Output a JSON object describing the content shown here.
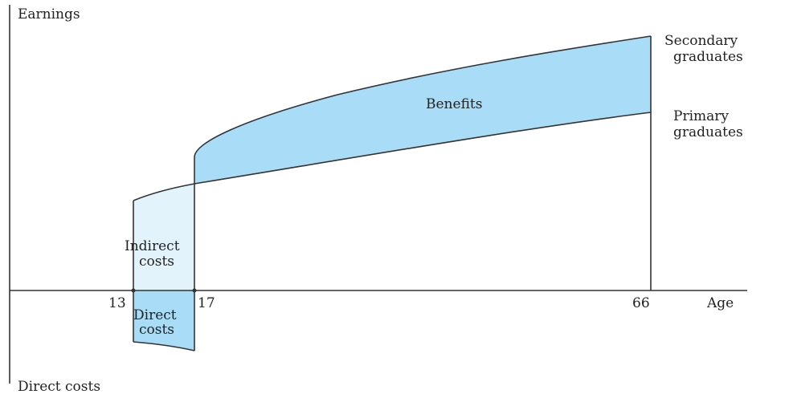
{
  "axes": {
    "y_top_label": "Earnings",
    "y_bottom_label": "Direct costs",
    "x_label": "Age"
  },
  "ticks": {
    "t13": "13",
    "t17": "17",
    "t66": "66"
  },
  "regions": {
    "benefits": "Benefits",
    "indirect_line1": "Indirect",
    "indirect_line2": "costs",
    "direct_line1": "Direct",
    "direct_line2": "costs"
  },
  "curves": {
    "secondary_line1": "Secondary",
    "secondary_line2": "graduates",
    "primary_line1": "Primary",
    "primary_line2": "graduates"
  },
  "colors": {
    "benefits_fill": "#a9dcf6",
    "indirect_fill": "#e2f3fc",
    "direct_fill": "#a9dcf6",
    "line": "#333333"
  }
}
